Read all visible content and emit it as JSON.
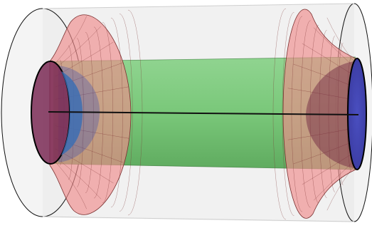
{
  "figure": {
    "description_visible_text": "",
    "colors": {
      "background": "#ffffff",
      "outer_cylinder_fill": "#e6e6e6",
      "outer_cylinder_edge": "#111111",
      "flare_fill": "#f08c8c",
      "flare_grid": "#7a2f2f",
      "tube_fill": "#6cc36c",
      "tube_edge": "#2f6e2f",
      "cap_dark": "#5a1f3f",
      "cap_blue": "#3f4fb0",
      "axis_line": "#111111"
    },
    "components": [
      "outer-translucent-cylinder",
      "left-flared-surface",
      "right-flared-surface",
      "green-inner-tube",
      "left-end-cap-disc",
      "right-end-cap-disc",
      "central-axis-line"
    ]
  }
}
